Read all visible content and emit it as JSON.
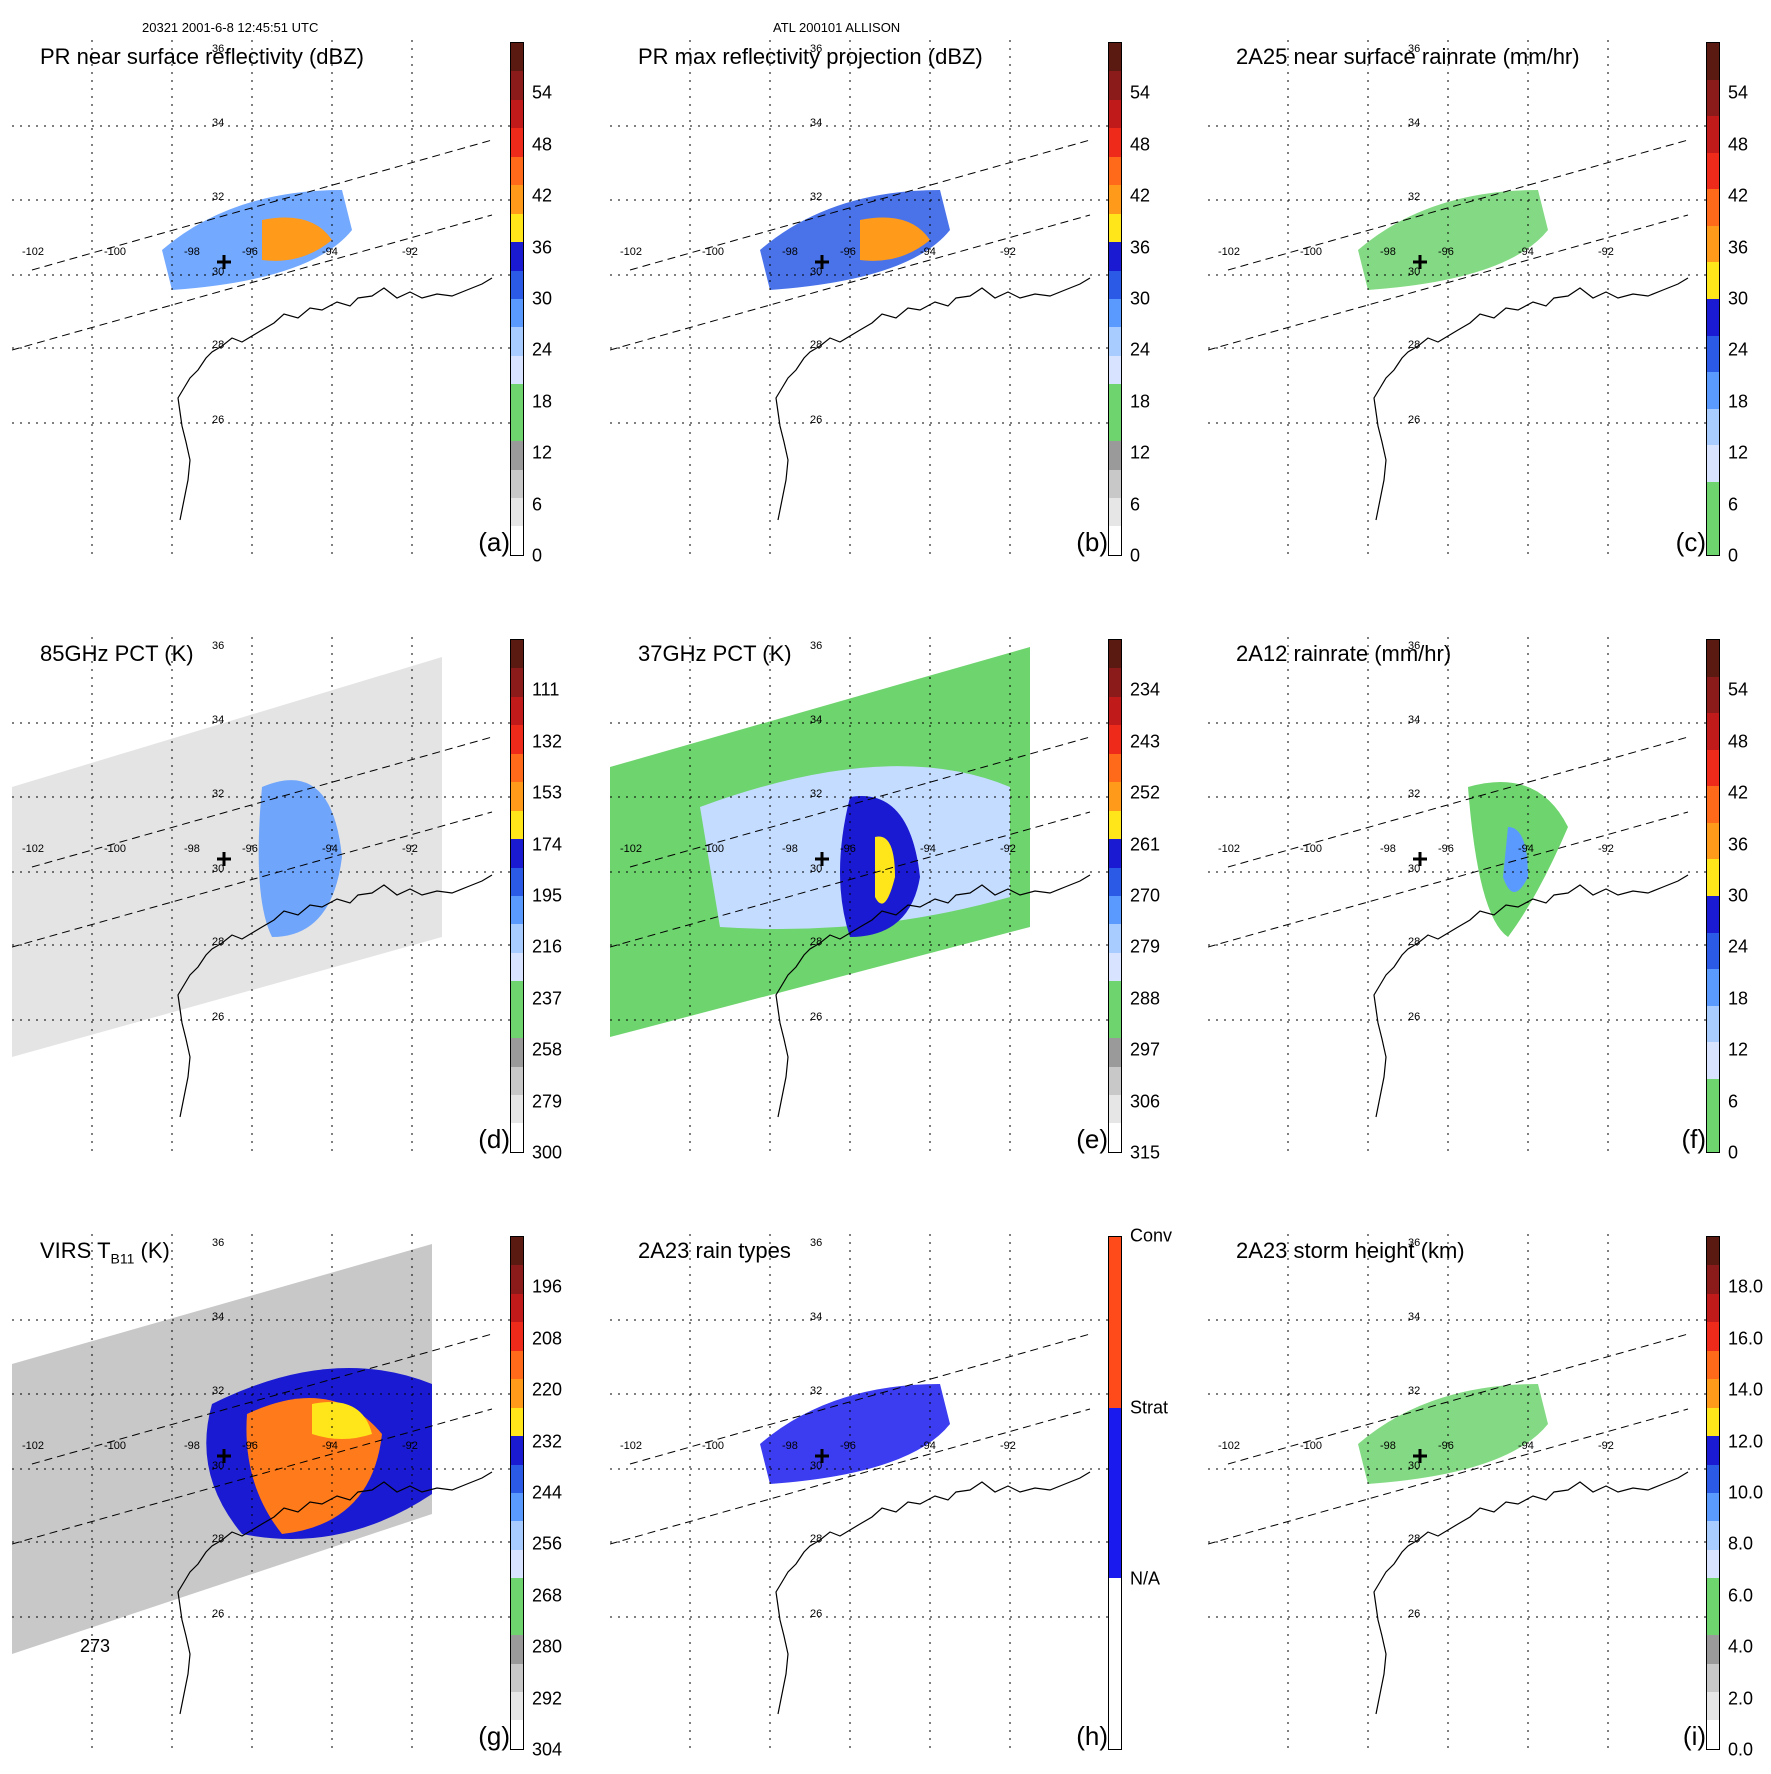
{
  "header": {
    "left": "20321 2001-6-8 12:45:51 UTC",
    "center": "ATL 200101 ALLISON"
  },
  "lon_labels": [
    "-102",
    "-100",
    "-98",
    "-96",
    "-94",
    "-92"
  ],
  "lat_labels": [
    "36",
    "34",
    "32",
    "30",
    "28",
    "26"
  ],
  "panels": [
    {
      "id": "a",
      "title": "PR near surface reflectivity (dBZ)",
      "label": "(a)",
      "ticks": [
        "54",
        "48",
        "42",
        "36",
        "30",
        "24",
        "18",
        "12",
        "6",
        "0"
      ],
      "colors": [
        "#5a1a12",
        "#8b1a1a",
        "#c01a1a",
        "#ee2a1a",
        "#ff6a1a",
        "#ff9a1a",
        "#ffe61a",
        "#1a1ad2",
        "#2a5ae6",
        "#5a9aff",
        "#a8ccff",
        "#d8e4ff",
        "#6ed46e",
        "#6ed46e",
        "#9a9a9a",
        "#c8c8c8",
        "#e6e6e6",
        "#ffffff"
      ]
    },
    {
      "id": "b",
      "title": "PR max reflectivity projection (dBZ)",
      "label": "(b)",
      "ticks": [
        "54",
        "48",
        "42",
        "36",
        "30",
        "24",
        "18",
        "12",
        "6",
        "0"
      ],
      "colors": [
        "#5a1a12",
        "#8b1a1a",
        "#c01a1a",
        "#ee2a1a",
        "#ff6a1a",
        "#ff9a1a",
        "#ffe61a",
        "#1a1ad2",
        "#2a5ae6",
        "#5a9aff",
        "#a8ccff",
        "#d8e4ff",
        "#6ed46e",
        "#6ed46e",
        "#9a9a9a",
        "#c8c8c8",
        "#e6e6e6",
        "#ffffff"
      ]
    },
    {
      "id": "c",
      "title": "2A25 near surface rainrate (mm/hr)",
      "label": "(c)",
      "ticks": [
        "54",
        "48",
        "42",
        "36",
        "30",
        "24",
        "18",
        "12",
        "6",
        "0"
      ],
      "colors": [
        "#5a1a12",
        "#8b1a1a",
        "#c01a1a",
        "#ee2a1a",
        "#ff6a1a",
        "#ff9a1a",
        "#ffe61a",
        "#1a1ad2",
        "#2a5ae6",
        "#5a9aff",
        "#a8ccff",
        "#d8e4ff",
        "#6ed46e",
        "#6ed46e"
      ]
    },
    {
      "id": "d",
      "title": "85GHz PCT (K)",
      "label": "(d)",
      "ticks": [
        "111",
        "132",
        "153",
        "174",
        "195",
        "216",
        "237",
        "258",
        "279",
        "300"
      ],
      "colors": [
        "#5a1a12",
        "#8b1a1a",
        "#c01a1a",
        "#ee2a1a",
        "#ff6a1a",
        "#ff9a1a",
        "#ffe61a",
        "#1a1ad2",
        "#2a5ae6",
        "#5a9aff",
        "#a8ccff",
        "#d8e4ff",
        "#6ed46e",
        "#6ed46e",
        "#9a9a9a",
        "#c8c8c8",
        "#e6e6e6",
        "#ffffff"
      ]
    },
    {
      "id": "e",
      "title": "37GHz PCT (K)",
      "label": "(e)",
      "ticks": [
        "234",
        "243",
        "252",
        "261",
        "270",
        "279",
        "288",
        "297",
        "306",
        "315"
      ],
      "colors": [
        "#5a1a12",
        "#8b1a1a",
        "#c01a1a",
        "#ee2a1a",
        "#ff6a1a",
        "#ff9a1a",
        "#ffe61a",
        "#1a1ad2",
        "#2a5ae6",
        "#5a9aff",
        "#a8ccff",
        "#d8e4ff",
        "#6ed46e",
        "#6ed46e",
        "#9a9a9a",
        "#c8c8c8",
        "#e6e6e6",
        "#ffffff"
      ]
    },
    {
      "id": "f",
      "title": "2A12 rainrate (mm/hr)",
      "label": "(f)",
      "ticks": [
        "54",
        "48",
        "42",
        "36",
        "30",
        "24",
        "18",
        "12",
        "6",
        "0"
      ],
      "colors": [
        "#5a1a12",
        "#8b1a1a",
        "#c01a1a",
        "#ee2a1a",
        "#ff6a1a",
        "#ff9a1a",
        "#ffe61a",
        "#1a1ad2",
        "#2a5ae6",
        "#5a9aff",
        "#a8ccff",
        "#d8e4ff",
        "#6ed46e",
        "#6ed46e"
      ]
    },
    {
      "id": "g",
      "title": "VIRS T",
      "title_sub": "B11",
      "title_suffix": " (K)",
      "label": "(g)",
      "ticks": [
        "196",
        "208",
        "220",
        "232",
        "244",
        "256",
        "268",
        "280",
        "292",
        "304"
      ],
      "colors": [
        "#5a1a12",
        "#8b1a1a",
        "#c01a1a",
        "#ee2a1a",
        "#ff6a1a",
        "#ff9a1a",
        "#ffe61a",
        "#1a1ad2",
        "#2a5ae6",
        "#5a9aff",
        "#a8ccff",
        "#d8e4ff",
        "#6ed46e",
        "#6ed46e",
        "#9a9a9a",
        "#c8c8c8",
        "#e6e6e6",
        "#ffffff"
      ],
      "contour_label": "273"
    },
    {
      "id": "h",
      "title": "2A23 rain types",
      "label": "(h)",
      "ticks": [
        "Conv",
        "Strat",
        "N/A"
      ],
      "colors": [
        "#ff4a1a",
        "#1a1aee",
        "#ffffff"
      ]
    },
    {
      "id": "i",
      "title": "2A23 storm height (km)",
      "label": "(i)",
      "ticks": [
        "18.0",
        "16.0",
        "14.0",
        "12.0",
        "10.0",
        "8.0",
        "6.0",
        "4.0",
        "2.0",
        "0.0"
      ],
      "colors": [
        "#5a1a12",
        "#8b1a1a",
        "#c01a1a",
        "#ee2a1a",
        "#ff6a1a",
        "#ff9a1a",
        "#ffe61a",
        "#1a1ad2",
        "#2a5ae6",
        "#5a9aff",
        "#a8ccff",
        "#d8e4ff",
        "#6ed46e",
        "#6ed46e",
        "#9a9a9a",
        "#c8c8c8",
        "#e6e6e6",
        "#ffffff"
      ]
    }
  ]
}
